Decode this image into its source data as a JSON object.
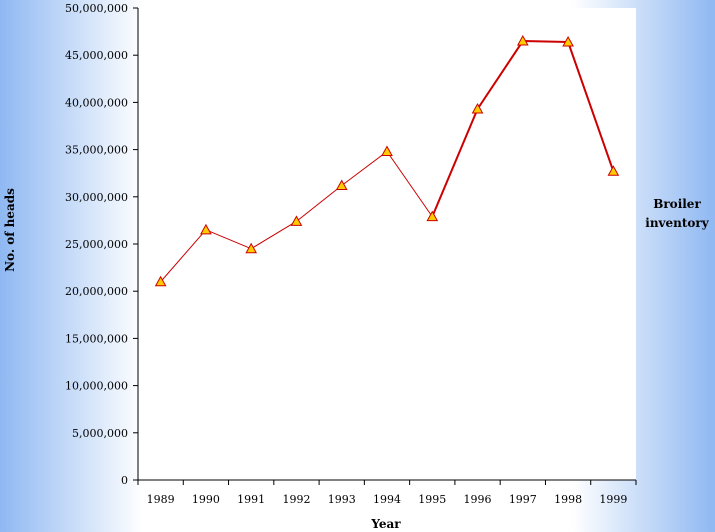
{
  "chart_data": {
    "type": "line",
    "title": "",
    "xlabel": "Year",
    "ylabel": "No. of heads",
    "categories": [
      "1989",
      "1990",
      "1991",
      "1992",
      "1993",
      "1994",
      "1995",
      "1996",
      "1997",
      "1998",
      "1999"
    ],
    "ylim": [
      0,
      50000000
    ],
    "yticks": [
      "0",
      "5,000,000",
      "10,000,000",
      "15,000,000",
      "20,000,000",
      "25,000,000",
      "30,000,000",
      "35,000,000",
      "40,000,000",
      "45,000,000",
      "50,000,000"
    ],
    "ytick_values": [
      0,
      5000000,
      10000000,
      15000000,
      20000000,
      25000000,
      30000000,
      35000000,
      40000000,
      45000000,
      50000000
    ],
    "series": [
      {
        "name": "Broiler inventory",
        "values": [
          21000000,
          26500000,
          24500000,
          27400000,
          31200000,
          34800000,
          27900000,
          39300000,
          46500000,
          46400000,
          32700000
        ]
      }
    ],
    "legend": {
      "position": "right",
      "lines": [
        "Broiler",
        "inventory"
      ]
    },
    "grid": false,
    "colors": {
      "line": "#cc0000",
      "marker_fill": "#ffcc00",
      "marker_stroke": "#cc0000",
      "plot_bg": "#ffffff"
    }
  }
}
